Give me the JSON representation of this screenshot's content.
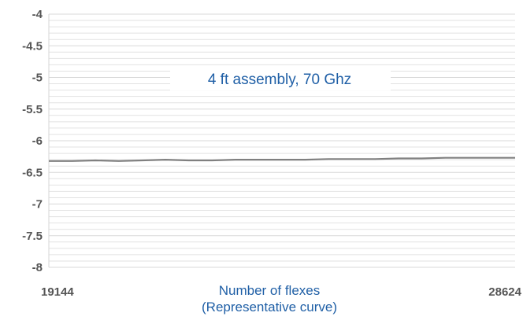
{
  "chart_data": {
    "type": "line",
    "title": "",
    "annotation": "4 ft assembly, 70 Ghz",
    "xlabel": [
      "Number of flexes",
      "(Representative curve)"
    ],
    "ylabel": "",
    "x_ticks": [
      "19144",
      "28624"
    ],
    "xlim": [
      19144,
      28624
    ],
    "y_ticks": [
      "-4",
      "-4.5",
      "-5",
      "-5.5",
      "-6",
      "-6.5",
      "-7",
      "-7.5",
      "-8"
    ],
    "ylim": [
      -8,
      -4
    ],
    "grid": "horizontal",
    "series": [
      {
        "x": [
          19144,
          19618,
          20092,
          20566,
          21040,
          21514,
          21988,
          22462,
          22936,
          23410,
          23884,
          24358,
          24832,
          25306,
          25780,
          26254,
          26728,
          27202,
          27676,
          28150,
          28624
        ],
        "values": [
          -6.32,
          -6.32,
          -6.31,
          -6.32,
          -6.31,
          -6.3,
          -6.31,
          -6.31,
          -6.3,
          -6.3,
          -6.3,
          -6.3,
          -6.29,
          -6.29,
          -6.29,
          -6.28,
          -6.28,
          -6.27,
          -6.27,
          -6.27,
          -6.27
        ]
      }
    ],
    "colors": {
      "line": "#808080",
      "grid": "#e2e2e2",
      "label": "#1f5fa6",
      "tick": "#555555"
    }
  }
}
